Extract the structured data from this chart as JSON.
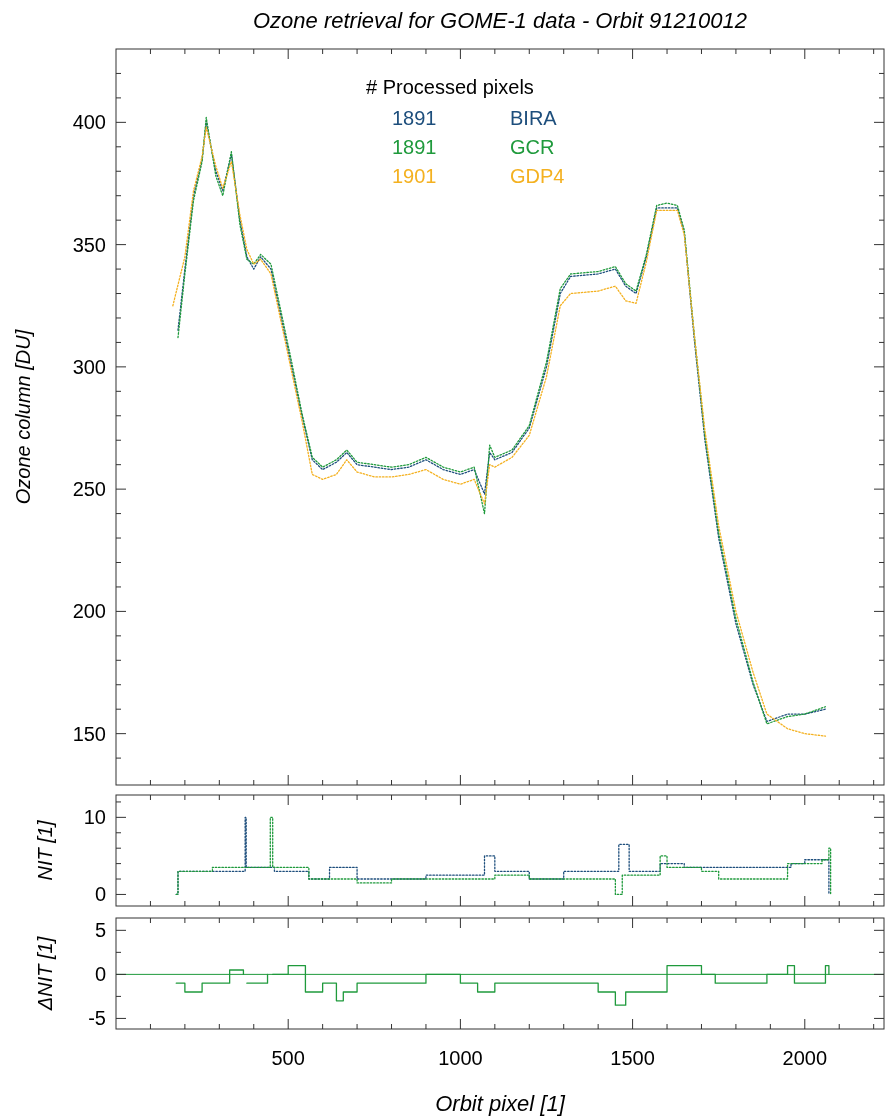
{
  "chart_data": [
    {
      "type": "line",
      "title": "Ozone retrieval for GOME-1 data - Orbit 91210012",
      "ylabel": "Ozone column [DU]",
      "legend_title": "# Processed pixels",
      "annotations": [
        "1891",
        "1891",
        "1901"
      ],
      "legend": "top",
      "line_style": "dotted",
      "tick_labels": "y",
      "grid": false,
      "xlim": [
        0,
        2230
      ],
      "xticks": [
        {
          "value": 100,
          "label": null
        },
        {
          "value": 200,
          "label": null
        },
        {
          "value": 300,
          "label": null
        },
        {
          "value": 400,
          "label": null
        },
        500,
        {
          "value": 600,
          "label": null
        },
        {
          "value": 700,
          "label": null
        },
        {
          "value": 800,
          "label": null
        },
        {
          "value": 900,
          "label": null
        },
        1000,
        {
          "value": 1100,
          "label": null
        },
        {
          "value": 1200,
          "label": null
        },
        {
          "value": 1300,
          "label": null
        },
        {
          "value": 1400,
          "label": null
        },
        1500,
        {
          "value": 1600,
          "label": null
        },
        {
          "value": 1700,
          "label": null
        },
        {
          "value": 1800,
          "label": null
        },
        {
          "value": 1900,
          "label": null
        },
        2000,
        {
          "value": 2100,
          "label": null
        },
        {
          "value": 2200,
          "label": null
        }
      ],
      "ylim": [
        129,
        430
      ],
      "yticks": [
        {
          "value": 140,
          "label": null
        },
        150,
        {
          "value": 160,
          "label": null
        },
        {
          "value": 170,
          "label": null
        },
        {
          "value": 180,
          "label": null
        },
        {
          "value": 190,
          "label": null
        },
        200,
        {
          "value": 210,
          "label": null
        },
        {
          "value": 220,
          "label": null
        },
        {
          "value": 230,
          "label": null
        },
        {
          "value": 240,
          "label": null
        },
        250,
        {
          "value": 260,
          "label": null
        },
        {
          "value": 270,
          "label": null
        },
        {
          "value": 280,
          "label": null
        },
        {
          "value": 290,
          "label": null
        },
        300,
        {
          "value": 310,
          "label": null
        },
        {
          "value": 320,
          "label": null
        },
        {
          "value": 330,
          "label": null
        },
        {
          "value": 340,
          "label": null
        },
        350,
        {
          "value": 360,
          "label": null
        },
        {
          "value": 370,
          "label": null
        },
        {
          "value": 380,
          "label": null
        },
        {
          "value": 390,
          "label": null
        },
        400,
        {
          "value": 410,
          "label": null
        },
        {
          "value": 420,
          "label": null
        }
      ],
      "series": [
        {
          "name": "BIRA",
          "color": "#1d4e7c",
          "x": [
            180,
            200,
            225,
            250,
            262,
            290,
            310,
            335,
            360,
            380,
            400,
            420,
            450,
            480,
            510,
            540,
            570,
            600,
            640,
            670,
            700,
            750,
            800,
            850,
            900,
            950,
            1000,
            1040,
            1070,
            1085,
            1100,
            1150,
            1200,
            1250,
            1290,
            1320,
            1400,
            1450,
            1480,
            1510,
            1540,
            1570,
            1600,
            1630,
            1650,
            1680,
            1710,
            1750,
            1800,
            1850,
            1890,
            1950,
            2000,
            2060
          ],
          "values": [
            315,
            340,
            370,
            385,
            400,
            380,
            372,
            387,
            360,
            345,
            340,
            345,
            340,
            320,
            300,
            280,
            262,
            258,
            261,
            265,
            260,
            259,
            258,
            259,
            262,
            258,
            256,
            258,
            248,
            265,
            262,
            265,
            275,
            300,
            330,
            337,
            338,
            340,
            333,
            330,
            345,
            365,
            365,
            365,
            355,
            310,
            270,
            230,
            195,
            170,
            155,
            158,
            158,
            160
          ]
        },
        {
          "name": "GCR",
          "color": "#1f9a3c",
          "x": [
            180,
            200,
            225,
            250,
            262,
            290,
            310,
            335,
            360,
            380,
            400,
            420,
            450,
            480,
            510,
            540,
            570,
            600,
            640,
            670,
            700,
            750,
            800,
            850,
            900,
            950,
            1000,
            1040,
            1070,
            1085,
            1100,
            1150,
            1200,
            1250,
            1290,
            1320,
            1400,
            1450,
            1480,
            1510,
            1540,
            1570,
            1600,
            1630,
            1650,
            1680,
            1710,
            1750,
            1800,
            1850,
            1890,
            1950,
            2000,
            2060
          ],
          "values": [
            312,
            338,
            368,
            384,
            402,
            378,
            370,
            388,
            358,
            344,
            342,
            346,
            342,
            322,
            302,
            281,
            263,
            259,
            262,
            266,
            261,
            260,
            259,
            260,
            263,
            259,
            257,
            259,
            240,
            268,
            263,
            266,
            276,
            302,
            332,
            338,
            339,
            341,
            334,
            331,
            346,
            366,
            367,
            366,
            356,
            312,
            272,
            232,
            197,
            171,
            154,
            157,
            158,
            161
          ]
        },
        {
          "name": "GDP4",
          "color": "#f4b120",
          "x": [
            165,
            200,
            225,
            250,
            262,
            290,
            310,
            335,
            360,
            380,
            400,
            420,
            450,
            480,
            510,
            540,
            570,
            600,
            640,
            670,
            700,
            750,
            800,
            850,
            900,
            950,
            1000,
            1040,
            1070,
            1085,
            1100,
            1150,
            1200,
            1250,
            1290,
            1320,
            1400,
            1450,
            1480,
            1510,
            1540,
            1570,
            1600,
            1630,
            1650,
            1680,
            1710,
            1750,
            1800,
            1850,
            1890,
            1950,
            2000,
            2060
          ],
          "values": [
            325,
            345,
            372,
            386,
            398,
            382,
            373,
            384,
            362,
            348,
            342,
            344,
            338,
            318,
            298,
            278,
            256,
            254,
            256,
            262,
            257,
            255,
            255,
            256,
            258,
            254,
            252,
            254,
            244,
            260,
            259,
            263,
            272,
            296,
            325,
            330,
            331,
            333,
            327,
            326,
            343,
            364,
            364,
            364,
            354,
            312,
            274,
            235,
            200,
            175,
            158,
            152,
            150,
            149
          ]
        }
      ]
    },
    {
      "type": "step",
      "ylabel": "NIT [1]",
      "line_style": "dotted",
      "tick_labels": "y",
      "grid": false,
      "xlim": [
        0,
        2230
      ],
      "xticks": [
        {
          "value": 100,
          "label": null
        },
        {
          "value": 200,
          "label": null
        },
        {
          "value": 300,
          "label": null
        },
        {
          "value": 400,
          "label": null
        },
        500,
        {
          "value": 600,
          "label": null
        },
        {
          "value": 700,
          "label": null
        },
        {
          "value": 800,
          "label": null
        },
        {
          "value": 900,
          "label": null
        },
        1000,
        {
          "value": 1100,
          "label": null
        },
        {
          "value": 1200,
          "label": null
        },
        {
          "value": 1300,
          "label": null
        },
        {
          "value": 1400,
          "label": null
        },
        1500,
        {
          "value": 1600,
          "label": null
        },
        {
          "value": 1700,
          "label": null
        },
        {
          "value": 1800,
          "label": null
        },
        {
          "value": 1900,
          "label": null
        },
        2000,
        {
          "value": 2100,
          "label": null
        },
        {
          "value": 2200,
          "label": null
        }
      ],
      "ylim": [
        -1.5,
        12.9
      ],
      "yticks": [
        0,
        {
          "value": 2,
          "label": null
        },
        {
          "value": 4,
          "label": null
        },
        {
          "value": 6,
          "label": null
        },
        {
          "value": 8,
          "label": null
        },
        10,
        {
          "value": 12,
          "label": null
        }
      ],
      "series": [
        {
          "color": "#1d4e7c",
          "x": [
            175,
            180,
            300,
            375,
            378,
            460,
            560,
            620,
            700,
            800,
            900,
            1000,
            1070,
            1100,
            1200,
            1300,
            1400,
            1460,
            1490,
            1580,
            1650,
            1750,
            1900,
            1960,
            2000,
            2065,
            2070
          ],
          "values": [
            0,
            3,
            3,
            10,
            3.5,
            3,
            2,
            3.5,
            2,
            2,
            2.5,
            2.5,
            5,
            3,
            2,
            3,
            3,
            6.5,
            3,
            4,
            3.5,
            3.5,
            3.5,
            4,
            4.5,
            4.5,
            0
          ]
        },
        {
          "color": "#1f9a3c",
          "x": [
            175,
            180,
            280,
            390,
            395,
            448,
            455,
            560,
            620,
            700,
            800,
            1000,
            1100,
            1200,
            1300,
            1450,
            1470,
            1580,
            1600,
            1700,
            1750,
            1900,
            1950,
            2050,
            2070,
            2075
          ],
          "values": [
            0,
            3,
            3.5,
            3.5,
            3.5,
            10,
            3.5,
            2,
            2,
            1.5,
            2,
            2,
            2.5,
            2,
            2,
            0,
            2.5,
            5,
            3.5,
            3,
            2,
            2,
            4,
            4.5,
            6,
            0
          ]
        }
      ]
    },
    {
      "type": "step",
      "ylabel": "ΔNIT [1]",
      "xlabel": "Orbit pixel [1]",
      "line_style": "solid",
      "grid": false,
      "xlim": [
        0,
        2230
      ],
      "xticks": [
        {
          "value": 100,
          "label": null
        },
        {
          "value": 200,
          "label": null
        },
        {
          "value": 300,
          "label": null
        },
        {
          "value": 400,
          "label": null
        },
        500,
        {
          "value": 600,
          "label": null
        },
        {
          "value": 700,
          "label": null
        },
        {
          "value": 800,
          "label": null
        },
        {
          "value": 900,
          "label": null
        },
        1000,
        {
          "value": 1100,
          "label": null
        },
        {
          "value": 1200,
          "label": null
        },
        {
          "value": 1300,
          "label": null
        },
        {
          "value": 1400,
          "label": null
        },
        1500,
        {
          "value": 1600,
          "label": null
        },
        {
          "value": 1700,
          "label": null
        },
        {
          "value": 1800,
          "label": null
        },
        {
          "value": 1900,
          "label": null
        },
        2000,
        {
          "value": 2100,
          "label": null
        },
        {
          "value": 2200,
          "label": null
        }
      ],
      "ylim": [
        -6.2,
        6.4
      ],
      "yticks": [
        -5,
        {
          "value": -2.5,
          "label": null
        },
        0,
        {
          "value": 2.5,
          "label": null
        },
        5
      ],
      "ref_lines": [
        {
          "axis": "y",
          "value": 0,
          "color": "#1f9a3c"
        }
      ],
      "series": [
        {
          "color": "#1f9a3c",
          "x": [
            175,
            200,
            250,
            330,
            370,
            375,
            380,
            440,
            450,
            455,
            500,
            550,
            600,
            640,
            660,
            700,
            800,
            900,
            1000,
            1050,
            1100,
            1200,
            1300,
            1400,
            1450,
            1480,
            1550,
            1600,
            1650,
            1700,
            1740,
            1890,
            1950,
            1970,
            2030,
            2060,
            2070
          ],
          "values": [
            -1,
            -2,
            -1,
            0.5,
            0,
            null,
            -1,
            0,
            null,
            0,
            1,
            -2,
            -1,
            -3,
            -2,
            -1,
            -1,
            0,
            -1,
            -2,
            -1,
            -1,
            -1,
            -2,
            -3.5,
            -2,
            -2,
            1,
            1,
            0,
            -1,
            0,
            1,
            -1,
            -1,
            1,
            0
          ]
        }
      ]
    }
  ]
}
